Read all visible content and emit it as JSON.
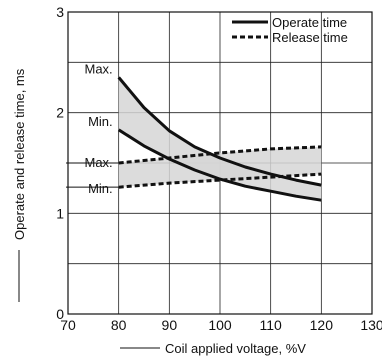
{
  "chart_data": {
    "type": "line",
    "title": "",
    "xlabel": "Coil applied voltage, %V",
    "ylabel": "Operate and release time, ms",
    "xlim": [
      70,
      130
    ],
    "ylim": [
      0,
      3
    ],
    "xticks": [
      "70",
      "80",
      "90",
      "100",
      "110",
      "120",
      "130"
    ],
    "yticks": [
      "0",
      "1",
      "2",
      "3"
    ],
    "grid": true,
    "legend_position": "top-right",
    "legend": [
      {
        "label": "Operate time",
        "style": "solid"
      },
      {
        "label": "Release time",
        "style": "dashed"
      }
    ],
    "band_fill": "#d6d6d6",
    "series": [
      {
        "name": "Operate time",
        "bound": "Max.",
        "x": [
          80,
          85,
          90,
          95,
          100,
          105,
          110,
          115,
          120
        ],
        "y": [
          2.35,
          2.05,
          1.82,
          1.66,
          1.55,
          1.46,
          1.39,
          1.33,
          1.28
        ]
      },
      {
        "name": "Operate time",
        "bound": "Min.",
        "x": [
          80,
          85,
          90,
          95,
          100,
          105,
          110,
          115,
          120
        ],
        "y": [
          1.83,
          1.67,
          1.54,
          1.43,
          1.34,
          1.27,
          1.22,
          1.17,
          1.13
        ]
      },
      {
        "name": "Release time",
        "bound": "Max.",
        "x": [
          80,
          90,
          100,
          110,
          120
        ],
        "y": [
          1.5,
          1.55,
          1.6,
          1.64,
          1.66
        ]
      },
      {
        "name": "Release time",
        "bound": "Min.",
        "x": [
          80,
          90,
          100,
          110,
          120
        ],
        "y": [
          1.26,
          1.3,
          1.33,
          1.36,
          1.39
        ]
      }
    ],
    "annotations": [
      {
        "text": "Max.",
        "series": "Operate time",
        "x": 80,
        "y": 2.35
      },
      {
        "text": "Min.",
        "series": "Operate time",
        "x": 80,
        "y": 1.83
      },
      {
        "text": "Max.",
        "series": "Release time",
        "x": 80,
        "y": 1.5
      },
      {
        "text": "Min.",
        "series": "Release time",
        "x": 80,
        "y": 1.26
      }
    ]
  }
}
